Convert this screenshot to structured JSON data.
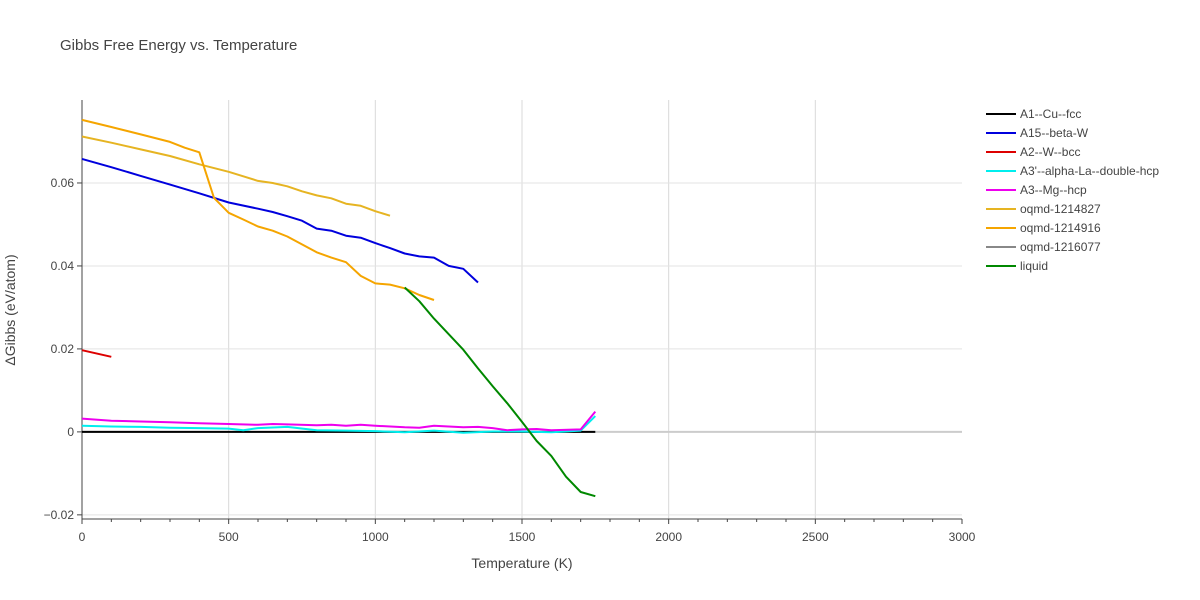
{
  "chart_data": {
    "type": "line",
    "title": "Gibbs Free Energy vs. Temperature",
    "xlabel": "Temperature (K)",
    "ylabel": "ΔGibbs (eV/atom)",
    "xlim": [
      0,
      3000
    ],
    "ylim": [
      -0.021,
      0.08
    ],
    "xticks": [
      0,
      500,
      1000,
      1500,
      2000,
      2500,
      3000
    ],
    "xtick_labels": [
      "0",
      "500",
      "1000",
      "1500",
      "2000",
      "2500",
      "3000"
    ],
    "yticks": [
      -0.02,
      0,
      0.02,
      0.04,
      0.06
    ],
    "ytick_labels": [
      "−0.02",
      "0",
      "0.02",
      "0.04",
      "0.06"
    ],
    "grid": true,
    "legend_position": "right",
    "series": [
      {
        "name": "A1--Cu--fcc",
        "color": "#000000",
        "x": [
          0,
          1750
        ],
        "y": [
          0,
          0
        ]
      },
      {
        "name": "A15--beta-W",
        "color": "#0000dd",
        "x": [
          0,
          100,
          200,
          300,
          400,
          500,
          600,
          650,
          700,
          750,
          800,
          850,
          900,
          950,
          1000,
          1050,
          1100,
          1150,
          1200,
          1250,
          1300,
          1350
        ],
        "y": [
          0.0658,
          0.0638,
          0.0617,
          0.0596,
          0.0575,
          0.0553,
          0.0538,
          0.053,
          0.052,
          0.0509,
          0.049,
          0.0485,
          0.0473,
          0.0468,
          0.0455,
          0.0443,
          0.043,
          0.0423,
          0.042,
          0.04,
          0.0393,
          0.036
        ]
      },
      {
        "name": "A2--W--bcc",
        "color": "#dd0000",
        "x": [
          0,
          100
        ],
        "y": [
          0.0197,
          0.0181
        ]
      },
      {
        "name": "A3'--alpha-La--double-hcp",
        "color": "#00eeee",
        "x": [
          0,
          100,
          200,
          300,
          400,
          500,
          550,
          600,
          700,
          800,
          900,
          1000,
          1100,
          1200,
          1300,
          1400,
          1500,
          1600,
          1700,
          1750
        ],
        "y": [
          0.0015,
          0.0013,
          0.0012,
          0.001,
          0.0009,
          0.0008,
          0.0004,
          0.0009,
          0.0012,
          0.0004,
          0.0003,
          0.0002,
          -0.0001,
          0.0003,
          -0.0002,
          0.0001,
          0.0001,
          -0.0001,
          0.0003,
          0.0038
        ]
      },
      {
        "name": "A3--Mg--hcp",
        "color": "#ee00ee",
        "x": [
          0,
          100,
          200,
          300,
          400,
          500,
          600,
          650,
          700,
          800,
          850,
          900,
          950,
          1000,
          1100,
          1150,
          1200,
          1300,
          1350,
          1400,
          1450,
          1500,
          1550,
          1600,
          1700,
          1750
        ],
        "y": [
          0.0032,
          0.0027,
          0.0025,
          0.0023,
          0.0021,
          0.0019,
          0.0017,
          0.0019,
          0.0018,
          0.0016,
          0.0017,
          0.0015,
          0.0017,
          0.0015,
          0.0011,
          0.001,
          0.0015,
          0.0011,
          0.0012,
          0.0009,
          0.0004,
          0.0006,
          0.0007,
          0.0004,
          0.0006,
          0.0049
        ]
      },
      {
        "name": "oqmd-1214827",
        "color": "#e6b422",
        "x": [
          0,
          100,
          200,
          300,
          400,
          500,
          550,
          600,
          650,
          700,
          750,
          800,
          850,
          900,
          950,
          1000,
          1050
        ],
        "y": [
          0.0712,
          0.0697,
          0.0681,
          0.0665,
          0.0645,
          0.0627,
          0.0616,
          0.0605,
          0.06,
          0.0592,
          0.058,
          0.057,
          0.0563,
          0.055,
          0.0545,
          0.0532,
          0.0521
        ]
      },
      {
        "name": "oqmd-1214916",
        "color": "#f5a500",
        "x": [
          0,
          100,
          200,
          300,
          350,
          400,
          450,
          500,
          550,
          600,
          650,
          700,
          750,
          800,
          850,
          900,
          950,
          1000,
          1050,
          1100,
          1150,
          1200
        ],
        "y": [
          0.0752,
          0.0735,
          0.0717,
          0.0699,
          0.0685,
          0.0674,
          0.0564,
          0.0528,
          0.0512,
          0.0495,
          0.0485,
          0.0471,
          0.0452,
          0.0433,
          0.042,
          0.0409,
          0.0376,
          0.0358,
          0.0355,
          0.0346,
          0.033,
          0.0318
        ]
      },
      {
        "name": "oqmd-1216077",
        "color": "#888888",
        "x": [],
        "y": []
      },
      {
        "name": "liquid",
        "color": "#008800",
        "x": [
          1100,
          1150,
          1200,
          1300,
          1350,
          1400,
          1450,
          1500,
          1550,
          1600,
          1650,
          1700,
          1750
        ],
        "y": [
          0.0348,
          0.0315,
          0.0273,
          0.0198,
          0.0153,
          0.011,
          0.0069,
          0.0024,
          -0.0022,
          -0.0058,
          -0.0108,
          -0.0145,
          -0.0155
        ]
      }
    ]
  }
}
